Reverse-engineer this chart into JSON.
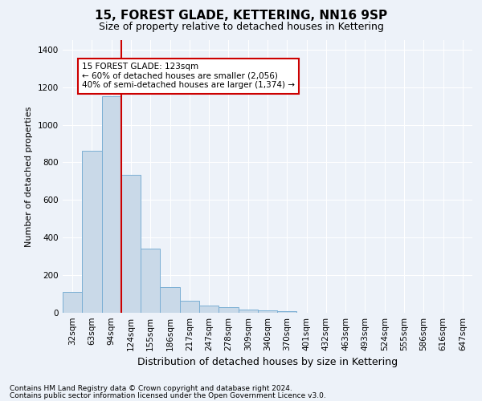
{
  "title": "15, FOREST GLADE, KETTERING, NN16 9SP",
  "subtitle": "Size of property relative to detached houses in Kettering",
  "xlabel": "Distribution of detached houses by size in Kettering",
  "ylabel": "Number of detached properties",
  "categories": [
    "32sqm",
    "63sqm",
    "94sqm",
    "124sqm",
    "155sqm",
    "186sqm",
    "217sqm",
    "247sqm",
    "278sqm",
    "309sqm",
    "340sqm",
    "370sqm",
    "401sqm",
    "432sqm",
    "463sqm",
    "493sqm",
    "524sqm",
    "555sqm",
    "586sqm",
    "616sqm",
    "647sqm"
  ],
  "values": [
    110,
    860,
    1150,
    735,
    340,
    135,
    65,
    38,
    28,
    18,
    14,
    8,
    0,
    0,
    0,
    0,
    0,
    0,
    0,
    0,
    0
  ],
  "bar_color": "#c9d9e8",
  "bar_edge_color": "#7bafd4",
  "vline_x_idx": 3,
  "vline_color": "#cc0000",
  "annotation_text": "15 FOREST GLADE: 123sqm\n← 60% of detached houses are smaller (2,056)\n40% of semi-detached houses are larger (1,374) →",
  "annotation_box_facecolor": "#ffffff",
  "annotation_box_edgecolor": "#cc0000",
  "ylim": [
    0,
    1450
  ],
  "yticks": [
    0,
    200,
    400,
    600,
    800,
    1000,
    1200,
    1400
  ],
  "background_color": "#edf2f9",
  "grid_color": "#ffffff",
  "footer_line1": "Contains HM Land Registry data © Crown copyright and database right 2024.",
  "footer_line2": "Contains public sector information licensed under the Open Government Licence v3.0.",
  "title_fontsize": 11,
  "subtitle_fontsize": 9,
  "ylabel_fontsize": 8,
  "xlabel_fontsize": 9,
  "tick_fontsize": 7.5,
  "ann_fontsize": 7.5,
  "footer_fontsize": 6.5
}
